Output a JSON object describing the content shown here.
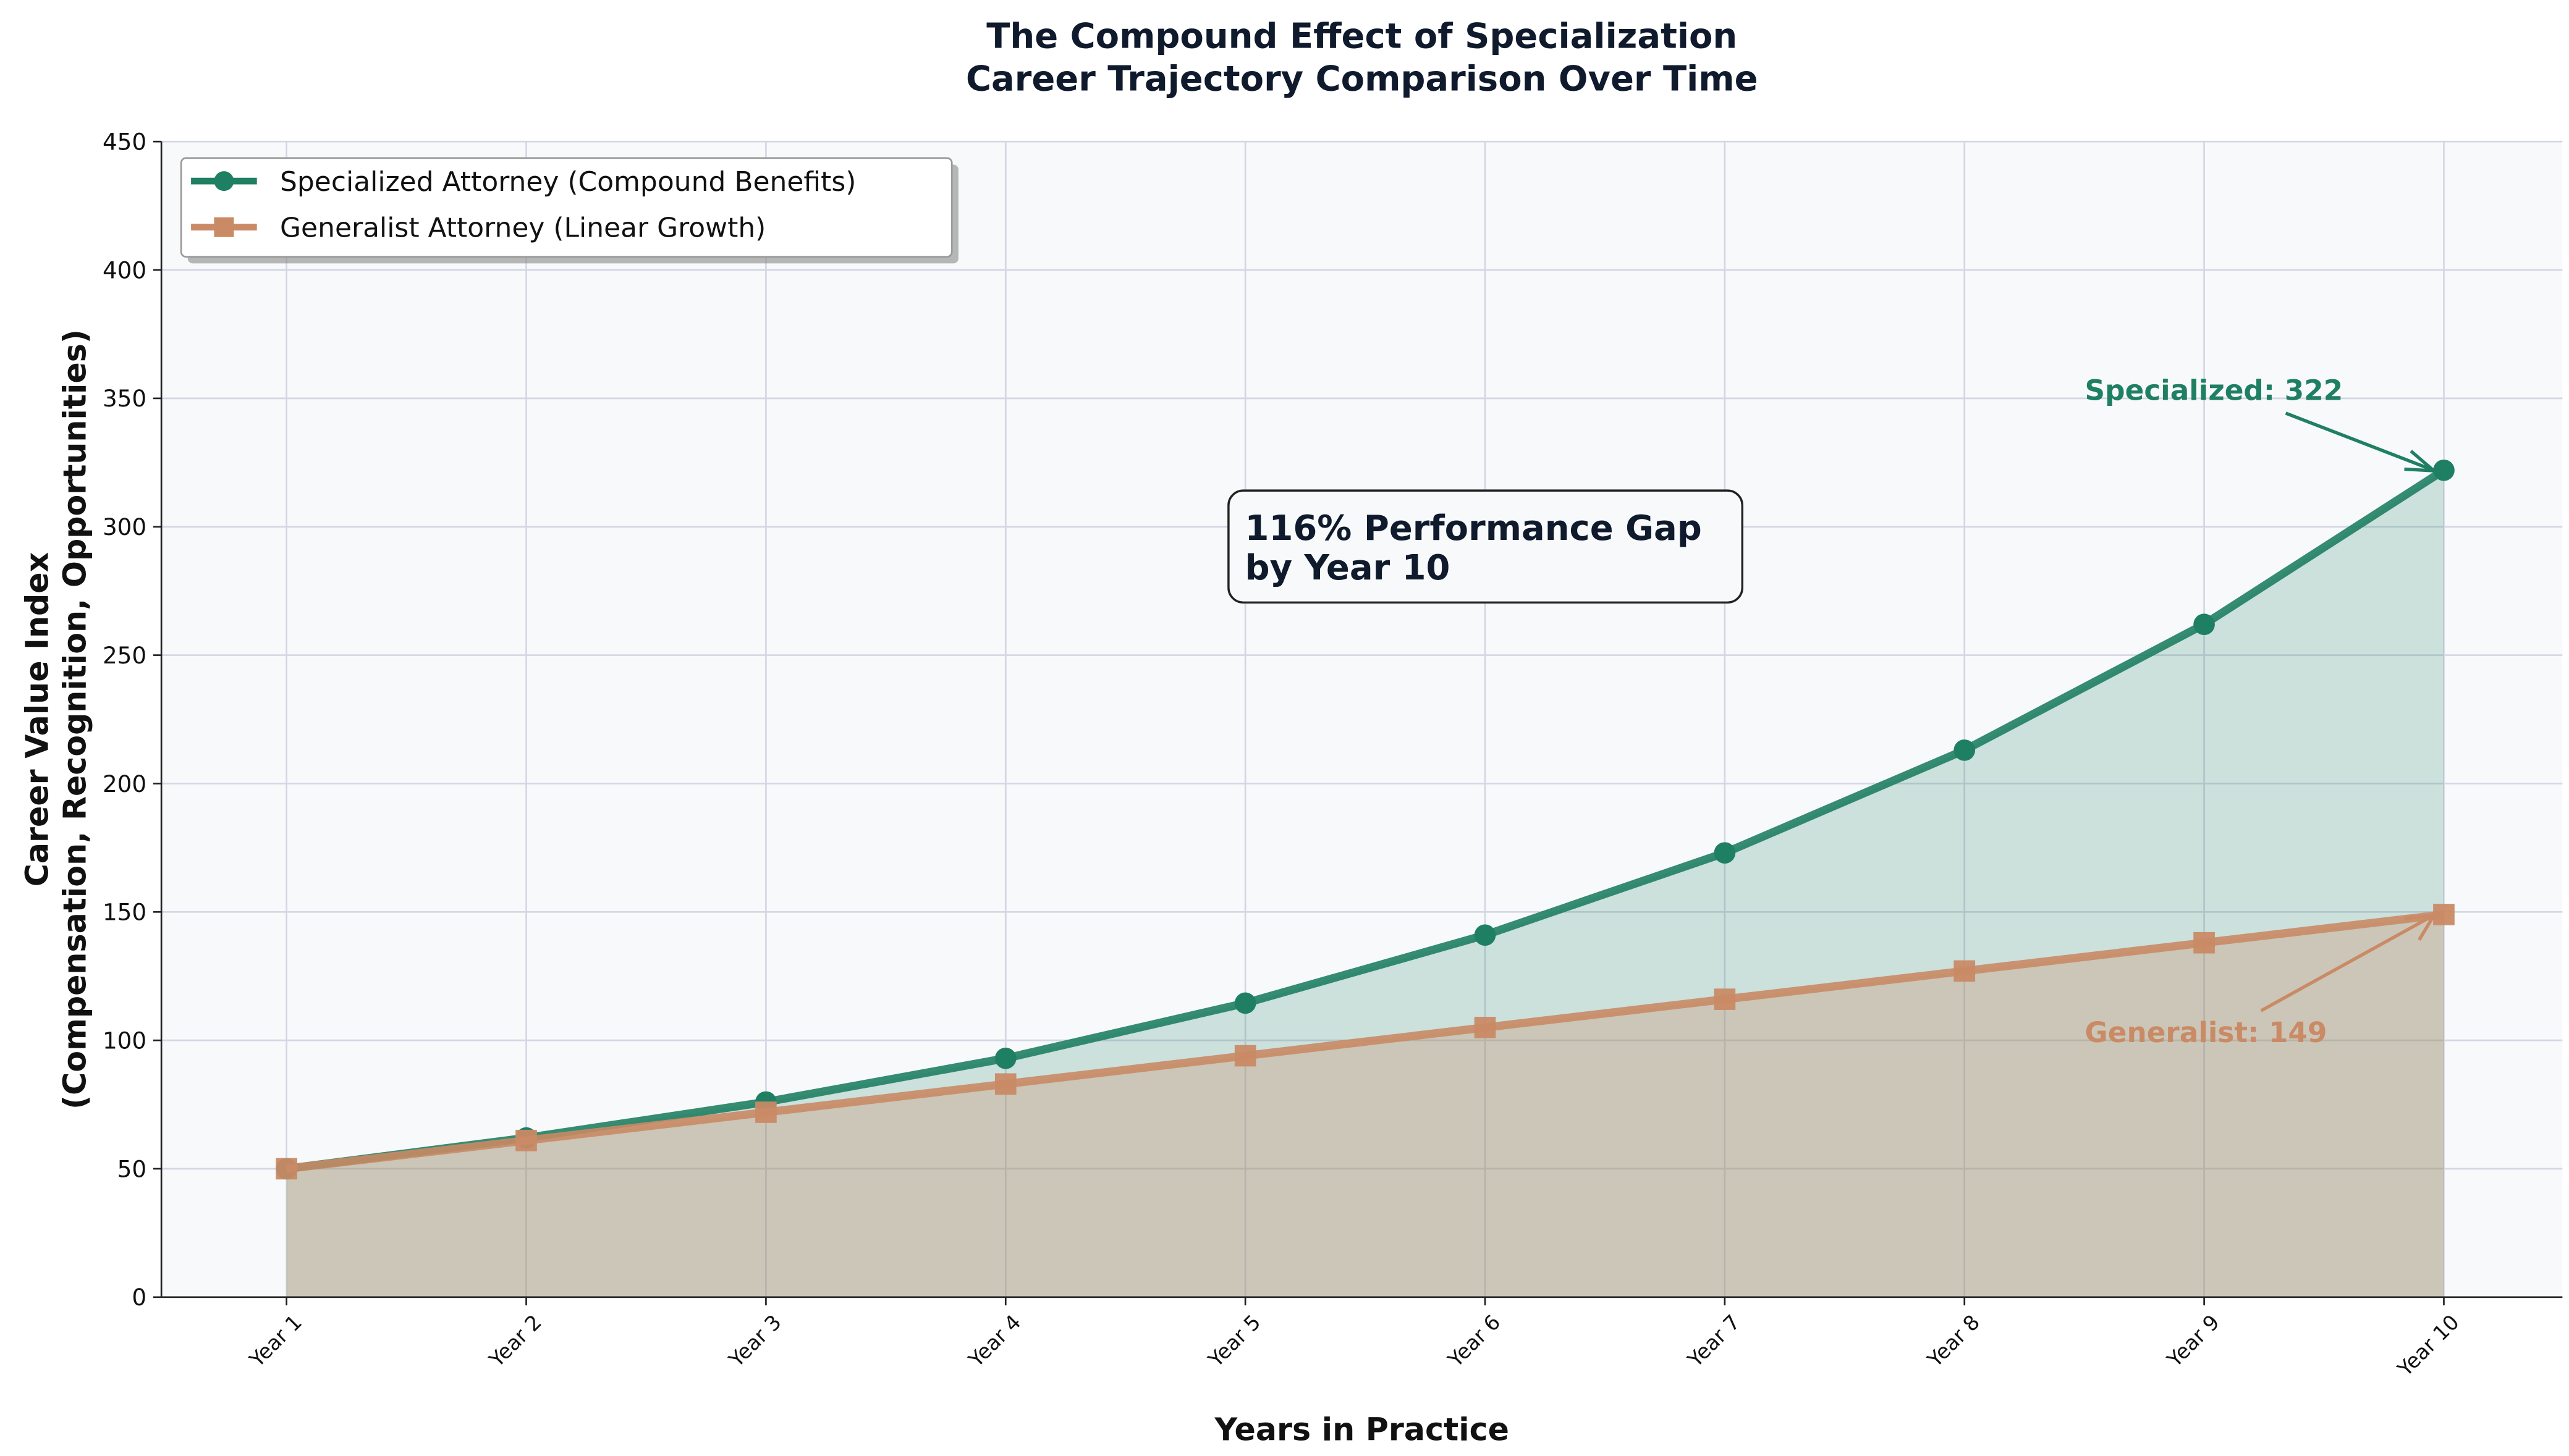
{
  "chart_data": {
    "type": "line",
    "title": "The Compound Effect of Specialization",
    "subtitle": "Career Trajectory Comparison Over Time",
    "xlabel": "Years in Practice",
    "ylabel_line1": "Career Value Index",
    "ylabel_line2": "(Compensation, Recognition, Opportunities)",
    "categories": [
      "Year 1",
      "Year 2",
      "Year 3",
      "Year 4",
      "Year 5",
      "Year 6",
      "Year 7",
      "Year 8",
      "Year 9",
      "Year 10"
    ],
    "ylim": [
      0,
      450
    ],
    "yticks": [
      0,
      50,
      100,
      150,
      200,
      250,
      300,
      350,
      400,
      450
    ],
    "grid": true,
    "legend_placement": "top-left",
    "series": [
      {
        "name": "Specialized Attorney (Compound Benefits)",
        "marker": "circle",
        "color": "#1f7f62",
        "values": [
          50,
          62,
          76,
          93,
          114.5,
          141,
          173,
          213,
          262,
          322
        ]
      },
      {
        "name": "Generalist Attorney (Linear Growth)",
        "marker": "square",
        "color": "#c98a65",
        "values": [
          50,
          61,
          72,
          83,
          94,
          105,
          116,
          127,
          138,
          149
        ]
      }
    ],
    "annotations": {
      "gap_box_line1": "116% Performance Gap",
      "gap_box_line2": "by Year 10",
      "specialized_label": "Specialized: 322",
      "generalist_label": "Generalist: 149"
    },
    "colors": {
      "plot_background": "#f8f9fb",
      "title": "#101a2d",
      "grid": "#d3d7e3"
    }
  }
}
